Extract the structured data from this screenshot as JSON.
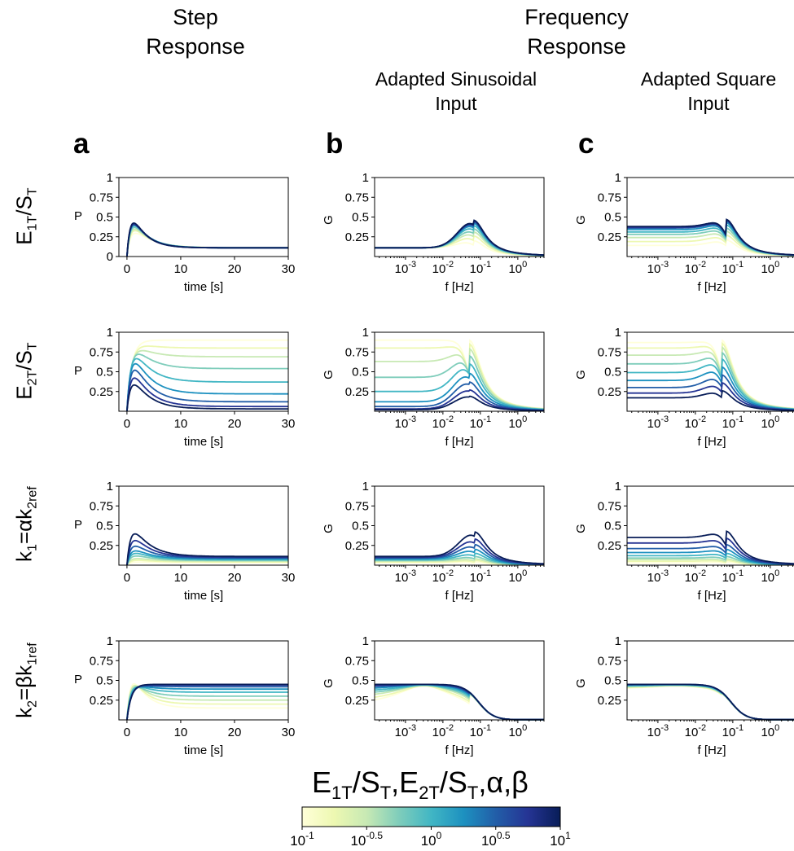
{
  "headers": {
    "step_l1": "Step",
    "step_l2": "Response",
    "freq_l1": "Frequency",
    "freq_l2": "Response",
    "sin_l1": "Adapted Sinusoidal",
    "sin_l2": "Input",
    "sq_l1": "Adapted Square",
    "sq_l2": "Input"
  },
  "panel_letters": [
    "a",
    "b",
    "c"
  ],
  "row_labels": [
    {
      "main": "E",
      "sub1": "1T",
      "mid": "/S",
      "sub2": "T"
    },
    {
      "main": "E",
      "sub1": "2T",
      "mid": "/S",
      "sub2": "T"
    },
    {
      "main": "k",
      "sub1": "1",
      "mid": "=αk",
      "sub2": "2ref"
    },
    {
      "main": "k",
      "sub1": "2",
      "mid": "=βk",
      "sub2": "1ref"
    }
  ],
  "colorbar": {
    "title": {
      "p1": "E",
      "s1": "1T",
      "p2": "/S",
      "s2": "T",
      "p3": ",E",
      "s3": "2T",
      "p4": "/S",
      "s4": "T",
      "p5": ",α,β"
    },
    "colormap": [
      "#ffffd9",
      "#edf8b1",
      "#c7e9b4",
      "#7fcdbb",
      "#41b6c4",
      "#1d91c0",
      "#225ea8",
      "#253494",
      "#081d58"
    ],
    "range_log10": [
      -1,
      1
    ],
    "ticks": [
      {
        "base": "10",
        "exp": "-1"
      },
      {
        "base": "10",
        "exp": "-0.5"
      },
      {
        "base": "10",
        "exp": "0"
      },
      {
        "base": "10",
        "exp": "0.5"
      },
      {
        "base": "10",
        "exp": "1"
      }
    ]
  },
  "chart_data": [
    {
      "type": "line",
      "panel": "a",
      "row": 1,
      "ylabel": "P",
      "xlabel": "time [s]",
      "xlim": [
        -1.5,
        30
      ],
      "ylim": [
        0,
        1
      ],
      "xticks": [
        "0",
        "10",
        "20",
        "30"
      ],
      "yticks": [
        "0",
        "0.25",
        "0.5",
        "0.75",
        "1"
      ],
      "model": {
        "kind": "step",
        "peak": [
          0.25,
          0.28,
          0.3,
          0.32,
          0.34,
          0.35,
          0.36,
          0.37,
          0.38
        ],
        "steady": [
          0.11,
          0.11,
          0.11,
          0.11,
          0.11,
          0.11,
          0.11,
          0.11,
          0.11
        ],
        "tau_rise": 0.8,
        "tau_decay": [
          3.5,
          3.2,
          3.0,
          2.9,
          2.8,
          2.7,
          2.6,
          2.5,
          2.5
        ]
      }
    },
    {
      "type": "line",
      "panel": "b",
      "row": 1,
      "ylabel": "G",
      "xlabel": "f [Hz]",
      "xscale": "log",
      "xlim": [
        0.00015,
        5
      ],
      "ylim": [
        0,
        1
      ],
      "xticks": [
        {
          "base": "10",
          "exp": "-3"
        },
        {
          "base": "10",
          "exp": "-2"
        },
        {
          "base": "10",
          "exp": "-1"
        },
        {
          "base": "10",
          "exp": "0"
        }
      ],
      "yticks": [
        "0.25",
        "0.5",
        "0.75",
        "1"
      ],
      "model": {
        "kind": "freq",
        "low": [
          0.11,
          0.11,
          0.11,
          0.11,
          0.11,
          0.11,
          0.11,
          0.11,
          0.11
        ],
        "peak": [
          0.2,
          0.26,
          0.31,
          0.35,
          0.39,
          0.42,
          0.44,
          0.45,
          0.46
        ],
        "fpk": 0.065
      }
    },
    {
      "type": "line",
      "panel": "c",
      "row": 1,
      "ylabel": "G",
      "xlabel": "f [Hz]",
      "xscale": "log",
      "xlim": [
        0.00015,
        5
      ],
      "ylim": [
        0,
        1
      ],
      "xticks": [
        {
          "base": "10",
          "exp": "-3"
        },
        {
          "base": "10",
          "exp": "-2"
        },
        {
          "base": "10",
          "exp": "-1"
        },
        {
          "base": "10",
          "exp": "0"
        }
      ],
      "yticks": [
        "0.25",
        "0.5",
        "0.75",
        "1"
      ],
      "model": {
        "kind": "freq",
        "low": [
          0.14,
          0.19,
          0.24,
          0.28,
          0.31,
          0.34,
          0.36,
          0.37,
          0.38
        ],
        "peak": [
          0.21,
          0.27,
          0.32,
          0.36,
          0.4,
          0.43,
          0.45,
          0.46,
          0.47
        ],
        "fpk": 0.065
      }
    },
    {
      "type": "line",
      "panel": "a",
      "row": 2,
      "ylabel": "P",
      "xlabel": "time [s]",
      "xlim": [
        -1.5,
        30
      ],
      "ylim": [
        0,
        1
      ],
      "xticks": [
        "0",
        "10",
        "20",
        "30"
      ],
      "yticks": [
        "0.25",
        "0.5",
        "0.75",
        "1"
      ],
      "model": {
        "kind": "step",
        "peak": [
          0.9,
          0.85,
          0.8,
          0.74,
          0.65,
          0.55,
          0.45,
          0.35,
          0.27
        ],
        "steady": [
          0.9,
          0.8,
          0.69,
          0.54,
          0.37,
          0.22,
          0.12,
          0.06,
          0.03
        ],
        "tau_rise": 0.9,
        "tau_decay": [
          3.0,
          3.0,
          3.0,
          3.0,
          3.0,
          3.0,
          3.0,
          3.0,
          3.0
        ]
      }
    },
    {
      "type": "line",
      "panel": "b",
      "row": 2,
      "ylabel": "G",
      "xlabel": "f [Hz]",
      "xscale": "log",
      "xlim": [
        0.00015,
        5
      ],
      "ylim": [
        0,
        1
      ],
      "xticks": [
        {
          "base": "10",
          "exp": "-3"
        },
        {
          "base": "10",
          "exp": "-2"
        },
        {
          "base": "10",
          "exp": "-1"
        },
        {
          "base": "10",
          "exp": "0"
        }
      ],
      "yticks": [
        "0.25",
        "0.5",
        "0.75",
        "1"
      ],
      "model": {
        "kind": "freq",
        "low": [
          0.9,
          0.8,
          0.63,
          0.43,
          0.25,
          0.12,
          0.06,
          0.03,
          0.02
        ],
        "peak": [
          0.9,
          0.85,
          0.79,
          0.7,
          0.6,
          0.48,
          0.37,
          0.27,
          0.19
        ],
        "fpk": 0.05
      }
    },
    {
      "type": "line",
      "panel": "c",
      "row": 2,
      "ylabel": "G",
      "xlabel": "f [Hz]",
      "xscale": "log",
      "xlim": [
        0.00015,
        5
      ],
      "ylim": [
        0,
        1
      ],
      "xticks": [
        {
          "base": "10",
          "exp": "-3"
        },
        {
          "base": "10",
          "exp": "-2"
        },
        {
          "base": "10",
          "exp": "-1"
        },
        {
          "base": "10",
          "exp": "0"
        }
      ],
      "yticks": [
        "0.25",
        "0.5",
        "0.75",
        "1"
      ],
      "model": {
        "kind": "freq",
        "low": [
          0.87,
          0.8,
          0.71,
          0.6,
          0.49,
          0.39,
          0.3,
          0.23,
          0.17
        ],
        "peak": [
          0.9,
          0.86,
          0.81,
          0.74,
          0.66,
          0.56,
          0.46,
          0.36,
          0.26
        ],
        "fpk": 0.05
      }
    },
    {
      "type": "line",
      "panel": "a",
      "row": 3,
      "ylabel": "P",
      "xlabel": "time [s]",
      "xlim": [
        -1.5,
        30
      ],
      "ylim": [
        0,
        1
      ],
      "xticks": [
        "0",
        "10",
        "20",
        "30"
      ],
      "yticks": [
        "0.25",
        "0.5",
        "0.75",
        "1"
      ],
      "model": {
        "kind": "step",
        "peak": [
          0.04,
          0.06,
          0.08,
          0.11,
          0.14,
          0.17,
          0.22,
          0.28,
          0.35
        ],
        "steady": [
          0.03,
          0.04,
          0.05,
          0.06,
          0.07,
          0.08,
          0.09,
          0.1,
          0.11
        ],
        "tau_rise": 0.9,
        "tau_decay": [
          3.5,
          3.4,
          3.3,
          3.2,
          3.1,
          3.0,
          3.0,
          3.0,
          3.0
        ]
      }
    },
    {
      "type": "line",
      "panel": "b",
      "row": 3,
      "ylabel": "G",
      "xlabel": "f [Hz]",
      "xscale": "log",
      "xlim": [
        0.00015,
        5
      ],
      "ylim": [
        0,
        1
      ],
      "xticks": [
        {
          "base": "10",
          "exp": "-3"
        },
        {
          "base": "10",
          "exp": "-2"
        },
        {
          "base": "10",
          "exp": "-1"
        },
        {
          "base": "10",
          "exp": "0"
        }
      ],
      "yticks": [
        "0.25",
        "0.5",
        "0.75",
        "1"
      ],
      "model": {
        "kind": "freq",
        "low": [
          0.03,
          0.04,
          0.05,
          0.06,
          0.07,
          0.08,
          0.09,
          0.1,
          0.11
        ],
        "peak": [
          0.04,
          0.06,
          0.08,
          0.11,
          0.15,
          0.2,
          0.26,
          0.33,
          0.42
        ],
        "fpk": 0.07
      }
    },
    {
      "type": "line",
      "panel": "c",
      "row": 3,
      "ylabel": "G",
      "xlabel": "f [Hz]",
      "xscale": "log",
      "xlim": [
        0.00015,
        5
      ],
      "ylim": [
        0,
        1
      ],
      "xticks": [
        {
          "base": "10",
          "exp": "-3"
        },
        {
          "base": "10",
          "exp": "-2"
        },
        {
          "base": "10",
          "exp": "-1"
        },
        {
          "base": "10",
          "exp": "0"
        }
      ],
      "yticks": [
        "0.25",
        "0.5",
        "0.75",
        "1"
      ],
      "model": {
        "kind": "freq",
        "low": [
          0.03,
          0.05,
          0.07,
          0.09,
          0.12,
          0.16,
          0.21,
          0.28,
          0.35
        ],
        "peak": [
          0.04,
          0.06,
          0.08,
          0.11,
          0.15,
          0.2,
          0.26,
          0.34,
          0.43
        ],
        "fpk": 0.065
      }
    },
    {
      "type": "line",
      "panel": "a",
      "row": 4,
      "ylabel": "P",
      "xlabel": "time [s]",
      "xlim": [
        -1.5,
        30
      ],
      "ylim": [
        0,
        1
      ],
      "xticks": [
        "0",
        "10",
        "20",
        "30"
      ],
      "yticks": [
        "0.25",
        "0.5",
        "0.75",
        "1"
      ],
      "model": {
        "kind": "step",
        "peak": [
          0.42,
          0.42,
          0.43,
          0.43,
          0.44,
          0.44,
          0.44,
          0.45,
          0.45
        ],
        "steady": [
          0.15,
          0.2,
          0.25,
          0.3,
          0.35,
          0.39,
          0.42,
          0.44,
          0.45
        ],
        "tau_rise": 0.8,
        "tau_decay": [
          2.5,
          2.5,
          2.5,
          2.5,
          2.5,
          2.5,
          2.5,
          2.5,
          2.5
        ]
      }
    },
    {
      "type": "line",
      "panel": "b",
      "row": 4,
      "ylabel": "G",
      "xlabel": "f [Hz]",
      "xscale": "log",
      "xlim": [
        0.00015,
        5
      ],
      "ylim": [
        0,
        1
      ],
      "xticks": [
        {
          "base": "10",
          "exp": "-3"
        },
        {
          "base": "10",
          "exp": "-2"
        },
        {
          "base": "10",
          "exp": "-1"
        },
        {
          "base": "10",
          "exp": "0"
        }
      ],
      "yticks": [
        "0.25",
        "0.5",
        "0.75",
        "1"
      ],
      "model": {
        "kind": "freq",
        "low": [
          0.17,
          0.22,
          0.27,
          0.31,
          0.35,
          0.38,
          0.41,
          0.43,
          0.45
        ],
        "peak": [
          0.43,
          0.43,
          0.44,
          0.44,
          0.44,
          0.45,
          0.45,
          0.45,
          0.45
        ],
        "fpk": 0.05,
        "flat": true
      }
    },
    {
      "type": "line",
      "panel": "c",
      "row": 4,
      "ylabel": "G",
      "xlabel": "f [Hz]",
      "xscale": "log",
      "xlim": [
        0.00015,
        5
      ],
      "ylim": [
        0,
        1
      ],
      "xticks": [
        {
          "base": "10",
          "exp": "-3"
        },
        {
          "base": "10",
          "exp": "-2"
        },
        {
          "base": "10",
          "exp": "-1"
        },
        {
          "base": "10",
          "exp": "0"
        }
      ],
      "yticks": [
        "0.25",
        "0.5",
        "0.75",
        "1"
      ],
      "model": {
        "kind": "freq",
        "low": [
          0.39,
          0.4,
          0.41,
          0.42,
          0.43,
          0.44,
          0.44,
          0.45,
          0.45
        ],
        "peak": [
          0.43,
          0.43,
          0.44,
          0.44,
          0.44,
          0.45,
          0.45,
          0.45,
          0.45
        ],
        "fpk": 0.05,
        "flat": true
      }
    }
  ]
}
